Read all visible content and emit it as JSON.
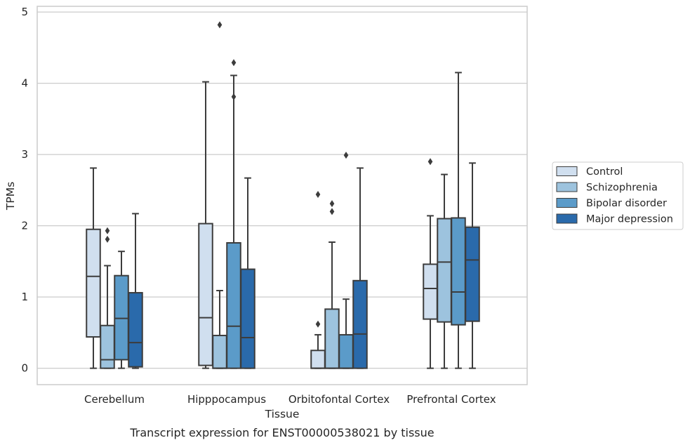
{
  "chart_data": {
    "type": "box",
    "title": "",
    "caption": "Transcript expression for ENST00000538021 by tissue",
    "xlabel": "Tissue",
    "ylabel": "TPMs",
    "ylim": [
      -0.23,
      5.08
    ],
    "yticks": [
      0,
      1,
      2,
      3,
      4,
      5
    ],
    "grid": "horizontal",
    "legend_position": "right",
    "categories": [
      "Cerebellum",
      "Hipppocampus",
      "Orbitofontal Cortex",
      "Prefrontal Cortex"
    ],
    "series": [
      {
        "name": "Control",
        "color": "#d0dfef",
        "boxes": [
          {
            "min": 0.0,
            "q1": 0.44,
            "median": 1.29,
            "q3": 1.95,
            "max": 2.81,
            "outliers": []
          },
          {
            "min": 0.0,
            "q1": 0.04,
            "median": 0.71,
            "q3": 2.03,
            "max": 4.02,
            "outliers": []
          },
          {
            "min": 0.0,
            "q1": 0.0,
            "median": 0.0,
            "q3": 0.25,
            "max": 0.47,
            "outliers": [
              0.62,
              2.44
            ]
          },
          {
            "min": 0.0,
            "q1": 0.69,
            "median": 1.12,
            "q3": 1.46,
            "max": 2.14,
            "outliers": [
              2.9
            ]
          }
        ]
      },
      {
        "name": "Schizophrenia",
        "color": "#9dc3de",
        "boxes": [
          {
            "min": 0.0,
            "q1": 0.0,
            "median": 0.12,
            "q3": 0.6,
            "max": 1.44,
            "outliers": [
              1.81,
              1.93
            ]
          },
          {
            "min": 0.0,
            "q1": 0.0,
            "median": 0.0,
            "q3": 0.46,
            "max": 1.09,
            "outliers": [
              4.82
            ]
          },
          {
            "min": 0.0,
            "q1": 0.0,
            "median": 0.0,
            "q3": 0.83,
            "max": 1.77,
            "outliers": [
              2.2,
              2.31
            ]
          },
          {
            "min": 0.0,
            "q1": 0.65,
            "median": 1.49,
            "q3": 2.1,
            "max": 2.72,
            "outliers": []
          }
        ]
      },
      {
        "name": "Bipolar disorder",
        "color": "#5b9bc9",
        "boxes": [
          {
            "min": 0.0,
            "q1": 0.12,
            "median": 0.7,
            "q3": 1.3,
            "max": 1.64,
            "outliers": []
          },
          {
            "min": 0.0,
            "q1": 0.0,
            "median": 0.59,
            "q3": 1.76,
            "max": 4.11,
            "outliers": [
              3.81,
              4.29
            ]
          },
          {
            "min": 0.0,
            "q1": 0.0,
            "median": 0.0,
            "q3": 0.47,
            "max": 0.97,
            "outliers": [
              2.99
            ]
          },
          {
            "min": 0.0,
            "q1": 0.61,
            "median": 1.07,
            "q3": 2.11,
            "max": 4.15,
            "outliers": []
          }
        ]
      },
      {
        "name": "Major depression",
        "color": "#2a6aab",
        "boxes": [
          {
            "min": 0.0,
            "q1": 0.02,
            "median": 0.36,
            "q3": 1.06,
            "max": 2.17,
            "outliers": []
          },
          {
            "min": 0.0,
            "q1": 0.0,
            "median": 0.43,
            "q3": 1.39,
            "max": 2.67,
            "outliers": []
          },
          {
            "min": 0.0,
            "q1": 0.0,
            "median": 0.48,
            "q3": 1.23,
            "max": 2.81,
            "outliers": []
          },
          {
            "min": 0.0,
            "q1": 0.66,
            "median": 1.52,
            "q3": 1.98,
            "max": 2.88,
            "outliers": []
          }
        ]
      }
    ]
  }
}
